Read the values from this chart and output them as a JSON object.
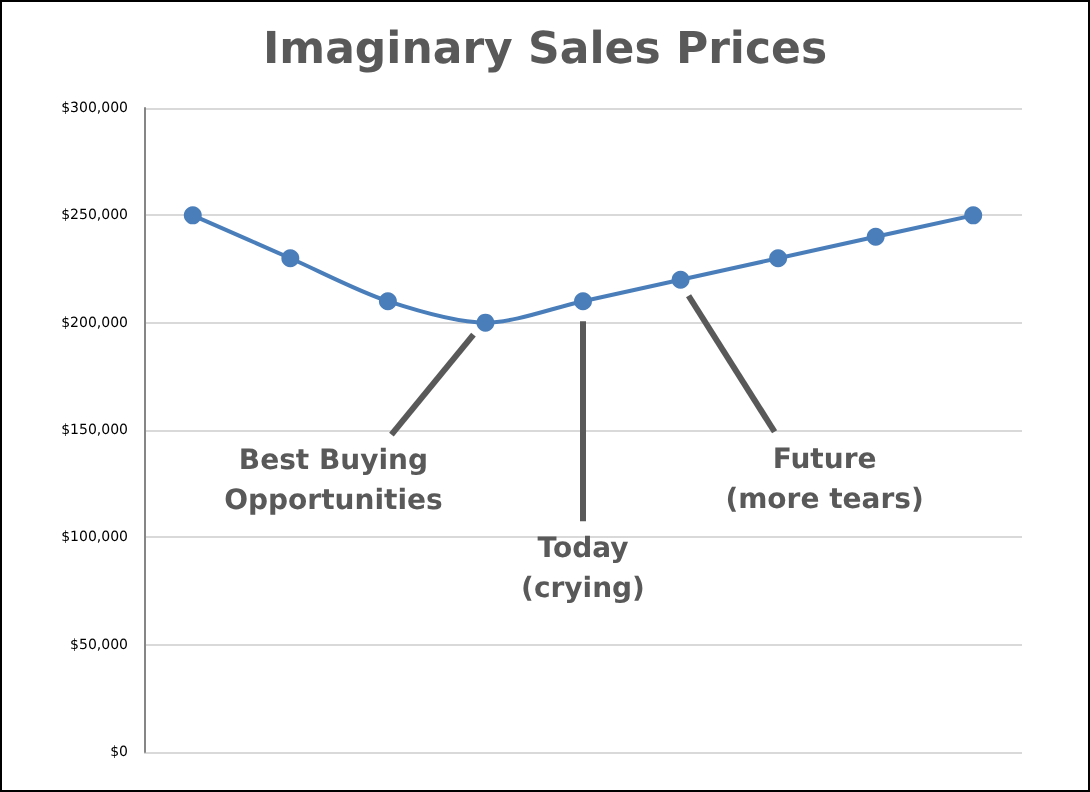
{
  "chart_data": {
    "type": "line",
    "title": "Imaginary Sales Prices",
    "categories": [
      null,
      null,
      null,
      null,
      null,
      null,
      null,
      null,
      null
    ],
    "series": [
      {
        "color": "#4a7ebb",
        "values": [
          250000,
          230000,
          210000,
          200000,
          210000,
          220000,
          230000,
          240000,
          250000
        ]
      }
    ],
    "ylim": [
      0,
      300000
    ],
    "yticks": [
      {
        "value": 0,
        "label": "$0"
      },
      {
        "value": 50000,
        "label": "$50,000"
      },
      {
        "value": 100000,
        "label": "$100,000"
      },
      {
        "value": 150000,
        "label": "$150,000"
      },
      {
        "value": 200000,
        "label": "$200,000"
      },
      {
        "value": 250000,
        "label": "$250,000"
      },
      {
        "value": 300000,
        "label": "$300,000"
      }
    ],
    "grid": "y",
    "marker": "circle",
    "line_style": "solid",
    "annotations": [
      "Best Buying\nOpportunities",
      "Today\n(crying)",
      "Future\n(more tears)"
    ]
  }
}
